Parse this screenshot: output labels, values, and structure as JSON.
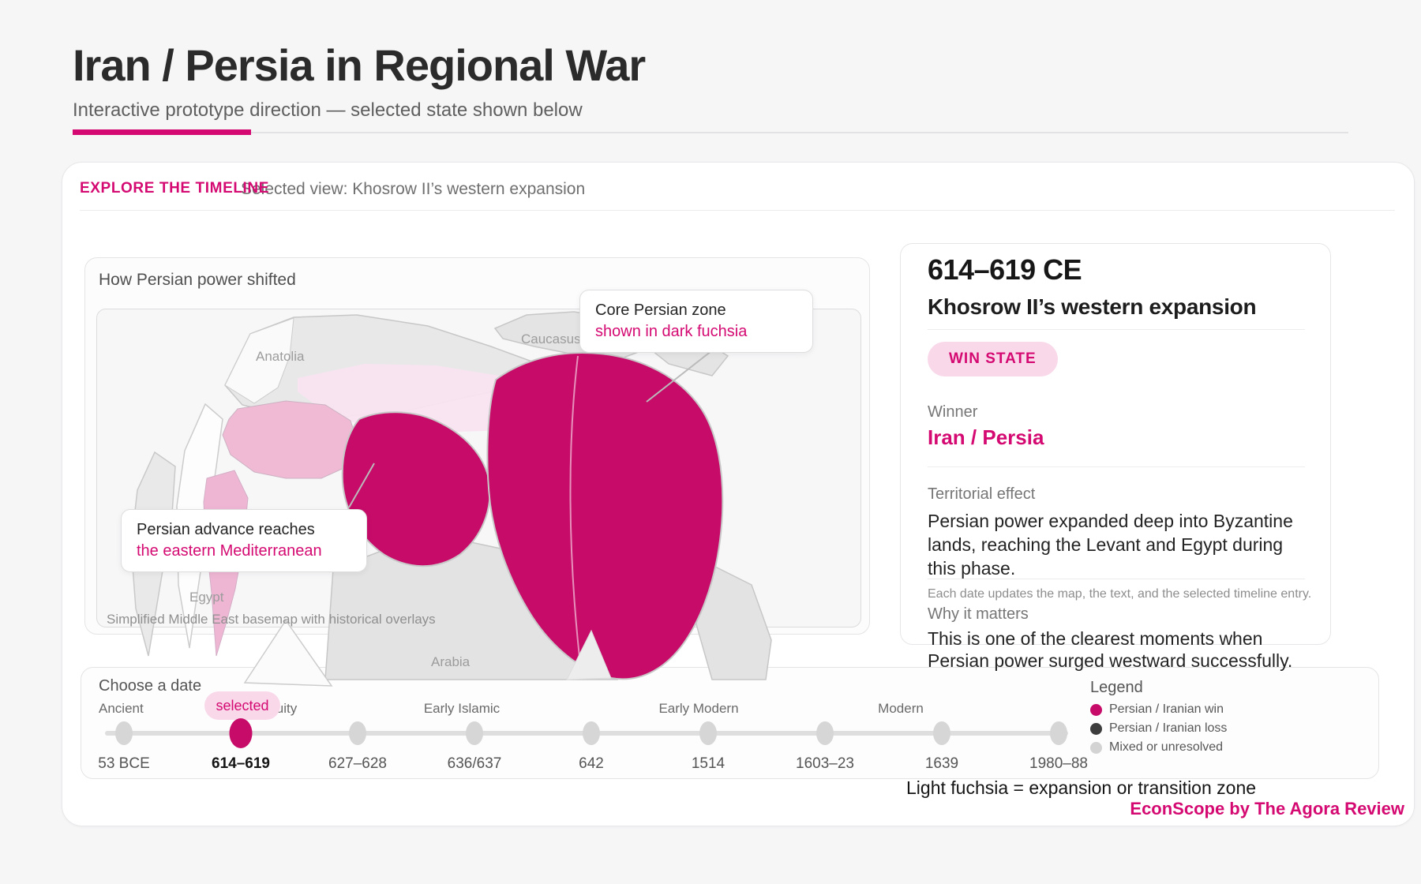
{
  "page": {
    "title": "Iran / Persia in Regional War",
    "subtitle": "Interactive prototype direction — selected state shown below"
  },
  "card": {
    "kicker": "EXPLORE THE TIMELINE",
    "selected_view": "Selected view: Khosrow II’s western expansion"
  },
  "map": {
    "heading": "How Persian power shifted",
    "caption": "Simplified Middle East basemap with historical overlays",
    "labels": {
      "anatolia": "Anatolia",
      "caucasus": "Caucasus",
      "egypt": "Egypt",
      "arabia": "Arabia"
    },
    "callout_core": {
      "line1": "Core Persian zone",
      "line2": "shown in dark fuchsia"
    },
    "callout_advance": {
      "line1": "Persian advance reaches",
      "line2": "the eastern Mediterranean"
    }
  },
  "detail": {
    "period": "614–619 CE",
    "event": "Khosrow II’s western expansion",
    "state_badge": "WIN STATE",
    "winner_label": "Winner",
    "winner": "Iran / Persia",
    "territorial_label": "Territorial effect",
    "territorial_text": "Persian power expanded deep into Byzantine lands, reaching the Levant and Egypt during this phase.",
    "note": "Each date updates the map, the text, and the selected timeline entry.",
    "why_label": "Why it matters",
    "why_text": "This is one of the clearest moments when Persian power surged westward successfully."
  },
  "timeline": {
    "heading": "Choose a date",
    "selected_badge": "selected",
    "eras": [
      "Ancient",
      "Antiquity",
      "Early Islamic",
      "Early Modern",
      "Modern"
    ],
    "dates": [
      {
        "label": "53 BCE",
        "selected": false
      },
      {
        "label": "614–619",
        "selected": true
      },
      {
        "label": "627–628",
        "selected": false
      },
      {
        "label": "636/637",
        "selected": false
      },
      {
        "label": "642",
        "selected": false
      },
      {
        "label": "1514",
        "selected": false
      },
      {
        "label": "1603–23",
        "selected": false
      },
      {
        "label": "1639",
        "selected": false
      },
      {
        "label": "1980–88",
        "selected": false
      }
    ]
  },
  "legend": {
    "heading": "Legend",
    "items": [
      {
        "label": "Persian / Iranian win",
        "color": "#c70b69"
      },
      {
        "label": "Persian / Iranian loss",
        "color": "#3d3d3d"
      },
      {
        "label": "Mixed or unresolved",
        "color": "#d3d3d3"
      }
    ]
  },
  "footer": {
    "note": "Light fuchsia = expansion or transition zone",
    "credit": "EconScope by The Agora Review"
  },
  "colors": {
    "accent": "#d40a72",
    "core": "#c70b69",
    "pill_bg": "#f9d8e9",
    "pink_zone": "#f0b9d4",
    "pink_band": "#f9e4f0",
    "pink_wedge": "#eeb6d3"
  }
}
